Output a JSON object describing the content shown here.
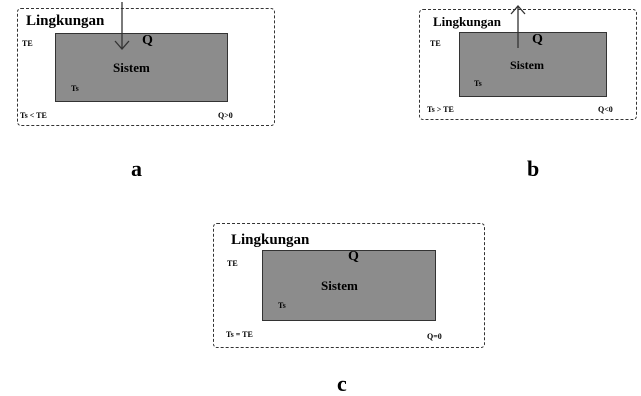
{
  "panels": {
    "a": {
      "environment_label": "Lingkungan",
      "environment_temp": "TE",
      "system_label": "Sistem",
      "system_temp": "Ts",
      "heat_label": "Q",
      "temp_relation": "Ts < TE",
      "heat_sign": "Q>0",
      "heat_direction": "into system",
      "caption": "a"
    },
    "b": {
      "environment_label": "Lingkungan",
      "environment_temp": "TE",
      "system_label": "Sistem",
      "system_temp": "Ts",
      "heat_label": "Q",
      "temp_relation": "Ts > TE",
      "heat_sign": "Q<0",
      "heat_direction": "out of system",
      "caption": "b"
    },
    "c": {
      "environment_label": "Lingkungan",
      "environment_temp": "TE",
      "system_label": "Sistem",
      "system_temp": "Ts",
      "heat_label": "Q",
      "temp_relation": "Ts = TE",
      "heat_sign": "Q=0",
      "heat_direction": "none",
      "caption": "c"
    }
  },
  "colors": {
    "system_fill": "#8c8c8c",
    "border": "#333333",
    "text": "#000000"
  }
}
